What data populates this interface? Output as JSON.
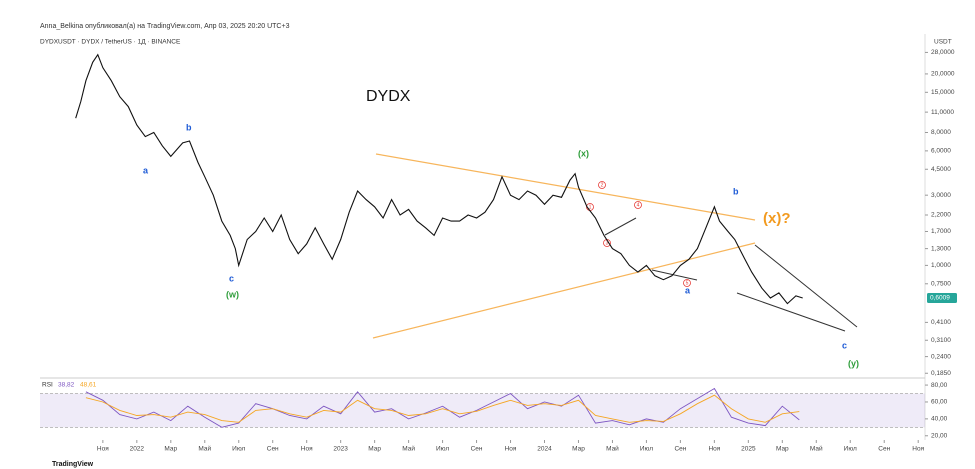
{
  "header": {
    "publisher": "Anna_Belkina опубликовал(а) на TradingView.com, Апр 03, 2025 20:20 UTC+3",
    "footer": "TradingView"
  },
  "chart_data": [
    {
      "type": "line",
      "title": "DYDX",
      "subtitle": "DYDXUSDT · DYDX / TetherUS · 1Д · BINANCE",
      "y_axis_label": "USDT",
      "log_scale": true,
      "color": "#111111",
      "xlim": [
        -3.7,
        48.4
      ],
      "ylim": [
        0.18,
        34
      ],
      "yticks": [
        {
          "value": 28,
          "label": "28,0000"
        },
        {
          "value": 20,
          "label": "20,0000"
        },
        {
          "value": 15,
          "label": "15,0000"
        },
        {
          "value": 11,
          "label": "11,0000"
        },
        {
          "value": 8,
          "label": "8,0000"
        },
        {
          "value": 6,
          "label": "6,0000"
        },
        {
          "value": 4.5,
          "label": "4,5000"
        },
        {
          "value": 3,
          "label": "3,0000"
        },
        {
          "value": 2.2,
          "label": "2,2000"
        },
        {
          "value": 1.7,
          "label": "1,7000"
        },
        {
          "value": 1.3,
          "label": "1,3000"
        },
        {
          "value": 1,
          "label": "1,0000"
        },
        {
          "value": 0.75,
          "label": "0,7500"
        },
        {
          "value": 0.41,
          "label": "0,4100"
        },
        {
          "value": 0.31,
          "label": "0,3100"
        },
        {
          "value": 0.24,
          "label": "0,2400"
        },
        {
          "value": 0.185,
          "label": "0,1850"
        }
      ],
      "last_price": {
        "value": 0.6009,
        "label": "0,6009"
      },
      "x": [
        -1.6,
        -1.3,
        -1.0,
        -0.6,
        -0.3,
        0,
        0.5,
        1,
        1.5,
        2,
        2.5,
        3,
        3.5,
        4,
        4.7,
        5.1,
        5.6,
        6,
        6.5,
        7,
        7.5,
        7.8,
        8,
        8.5,
        9,
        9.5,
        10,
        10.5,
        11,
        11.5,
        12,
        12.5,
        13,
        13.5,
        14,
        14.5,
        15,
        15.5,
        16,
        16.5,
        17,
        17.5,
        18,
        18.5,
        19,
        19.5,
        20,
        20.5,
        21,
        21.5,
        22,
        22.5,
        23,
        23.5,
        24,
        24.5,
        25,
        25.5,
        26,
        26.5,
        27,
        27.5,
        27.8,
        28,
        28.5,
        29,
        29.5,
        30,
        30.5,
        31,
        31.5,
        32,
        32.5,
        33,
        33.5,
        34,
        34.5,
        35,
        35.5,
        36,
        36.3,
        36.8,
        37.2,
        37.8,
        38.2,
        38.8,
        39.3,
        39.8,
        40.3,
        40.8,
        41.2
      ],
      "values": [
        10,
        13,
        18,
        24,
        27,
        22,
        18,
        14,
        12,
        9,
        7.5,
        8,
        6.5,
        5.5,
        6.8,
        7,
        5,
        4,
        3,
        2,
        1.6,
        1.3,
        1,
        1.5,
        1.7,
        2.1,
        1.7,
        2.2,
        1.5,
        1.2,
        1.4,
        1.8,
        1.4,
        1.1,
        1.5,
        2.3,
        3.2,
        2.8,
        2.5,
        2.1,
        2.8,
        2.2,
        2.4,
        2,
        1.8,
        1.6,
        2.1,
        2,
        2,
        2.2,
        2.1,
        2.3,
        2.8,
        4,
        3,
        2.8,
        3.2,
        3,
        2.6,
        3,
        2.9,
        3.8,
        4.2,
        3.4,
        2.5,
        2.1,
        1.6,
        1.3,
        1.2,
        1,
        0.9,
        1,
        0.85,
        0.8,
        0.85,
        1,
        1.1,
        1.3,
        1.8,
        2.5,
        2,
        1.7,
        1.5,
        1.1,
        0.9,
        0.7,
        0.6,
        0.65,
        0.55,
        0.62,
        0.6
      ],
      "annotations": [
        "a",
        "b",
        "c",
        "(w)",
        "(x)",
        "(x)?",
        "b",
        "a",
        "c",
        "(y)",
        "1",
        "2",
        "3",
        "4",
        "5"
      ]
    },
    {
      "type": "line",
      "title": "RSI",
      "current_labels": [
        "38,82",
        "48,61"
      ],
      "band": [
        30,
        70
      ],
      "band_color": "#7e57c2",
      "xlim": [
        -3.7,
        48.4
      ],
      "ylim": [
        15,
        86
      ],
      "yticks": [
        {
          "value": 80,
          "label": "80,00"
        },
        {
          "value": 60,
          "label": "60,00"
        },
        {
          "value": 40,
          "label": "40,00"
        },
        {
          "value": 20,
          "label": "20,00"
        }
      ],
      "xticks": [
        {
          "value": 0,
          "label": "Ноя"
        },
        {
          "value": 2,
          "label": "2022"
        },
        {
          "value": 4,
          "label": "Мар"
        },
        {
          "value": 6,
          "label": "Май"
        },
        {
          "value": 8,
          "label": "Июл"
        },
        {
          "value": 10,
          "label": "Сен"
        },
        {
          "value": 12,
          "label": "Ноя"
        },
        {
          "value": 14,
          "label": "2023"
        },
        {
          "value": 16,
          "label": "Мар"
        },
        {
          "value": 18,
          "label": "Май"
        },
        {
          "value": 20,
          "label": "Июл"
        },
        {
          "value": 22,
          "label": "Сен"
        },
        {
          "value": 24,
          "label": "Ноя"
        },
        {
          "value": 26,
          "label": "2024"
        },
        {
          "value": 28,
          "label": "Мар"
        },
        {
          "value": 30,
          "label": "Май"
        },
        {
          "value": 32,
          "label": "Июл"
        },
        {
          "value": 34,
          "label": "Сен"
        },
        {
          "value": 36,
          "label": "Ноя"
        },
        {
          "value": 38,
          "label": "2025"
        },
        {
          "value": 40,
          "label": "Мар"
        },
        {
          "value": 42,
          "label": "Май"
        },
        {
          "value": 44,
          "label": "Июл"
        },
        {
          "value": 46,
          "label": "Сен"
        },
        {
          "value": 48,
          "label": "Ноя"
        }
      ],
      "x": [
        -1,
        0,
        1,
        2,
        3,
        4,
        5,
        6,
        7,
        8,
        9,
        10,
        11,
        12,
        13,
        14,
        15,
        16,
        17,
        18,
        19,
        20,
        21,
        22,
        23,
        24,
        25,
        26,
        27,
        28,
        29,
        30,
        31,
        32,
        33,
        34,
        35,
        36,
        37,
        38,
        39,
        40,
        41
      ],
      "series": [
        {
          "color": "#7e57c2",
          "values": [
            72,
            62,
            45,
            40,
            48,
            38,
            55,
            42,
            30,
            35,
            58,
            52,
            44,
            40,
            55,
            46,
            72,
            48,
            52,
            40,
            47,
            55,
            42,
            50,
            60,
            70,
            52,
            60,
            55,
            68,
            35,
            38,
            33,
            40,
            36,
            52,
            64,
            76,
            42,
            35,
            32,
            55,
            38.82
          ]
        },
        {
          "color": "#f5a623",
          "values": [
            65,
            60,
            50,
            44,
            45,
            42,
            48,
            45,
            38,
            36,
            50,
            52,
            46,
            42,
            50,
            48,
            62,
            52,
            50,
            44,
            46,
            52,
            46,
            49,
            56,
            62,
            56,
            58,
            56,
            62,
            44,
            40,
            36,
            38,
            37,
            46,
            58,
            68,
            52,
            40,
            36,
            46,
            48.61
          ]
        }
      ]
    }
  ]
}
